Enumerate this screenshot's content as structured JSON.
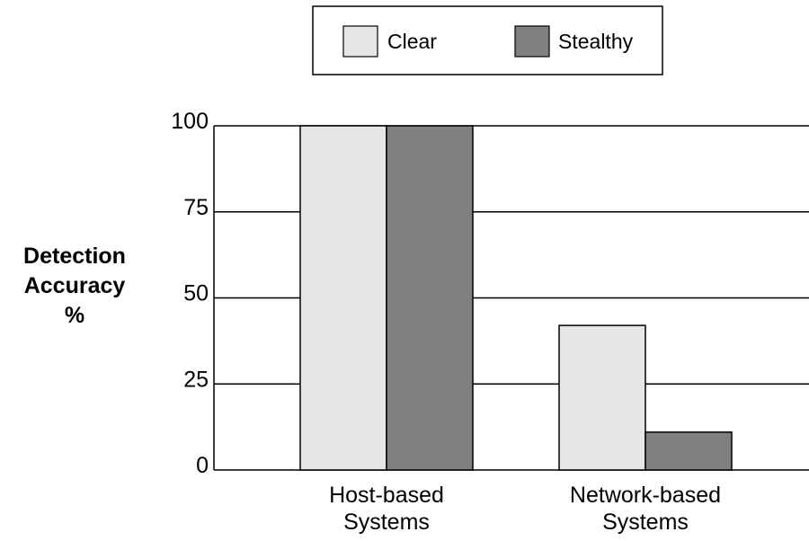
{
  "chart_data": {
    "type": "bar",
    "categories": [
      [
        "Host-based",
        "Systems"
      ],
      [
        "Network-based",
        "Systems"
      ]
    ],
    "series": [
      {
        "name": "Clear",
        "values": [
          100,
          42
        ],
        "color": "#e6e6e6"
      },
      {
        "name": "Stealthy",
        "values": [
          100,
          11
        ],
        "color": "#808080"
      }
    ],
    "title": "",
    "xlabel": "",
    "ylabel": [
      "Detection",
      "Accuracy",
      "%"
    ],
    "ylim": [
      0,
      100
    ],
    "yticks": [
      0,
      25,
      50,
      75,
      100
    ],
    "grid": true,
    "legend_position": "top"
  }
}
